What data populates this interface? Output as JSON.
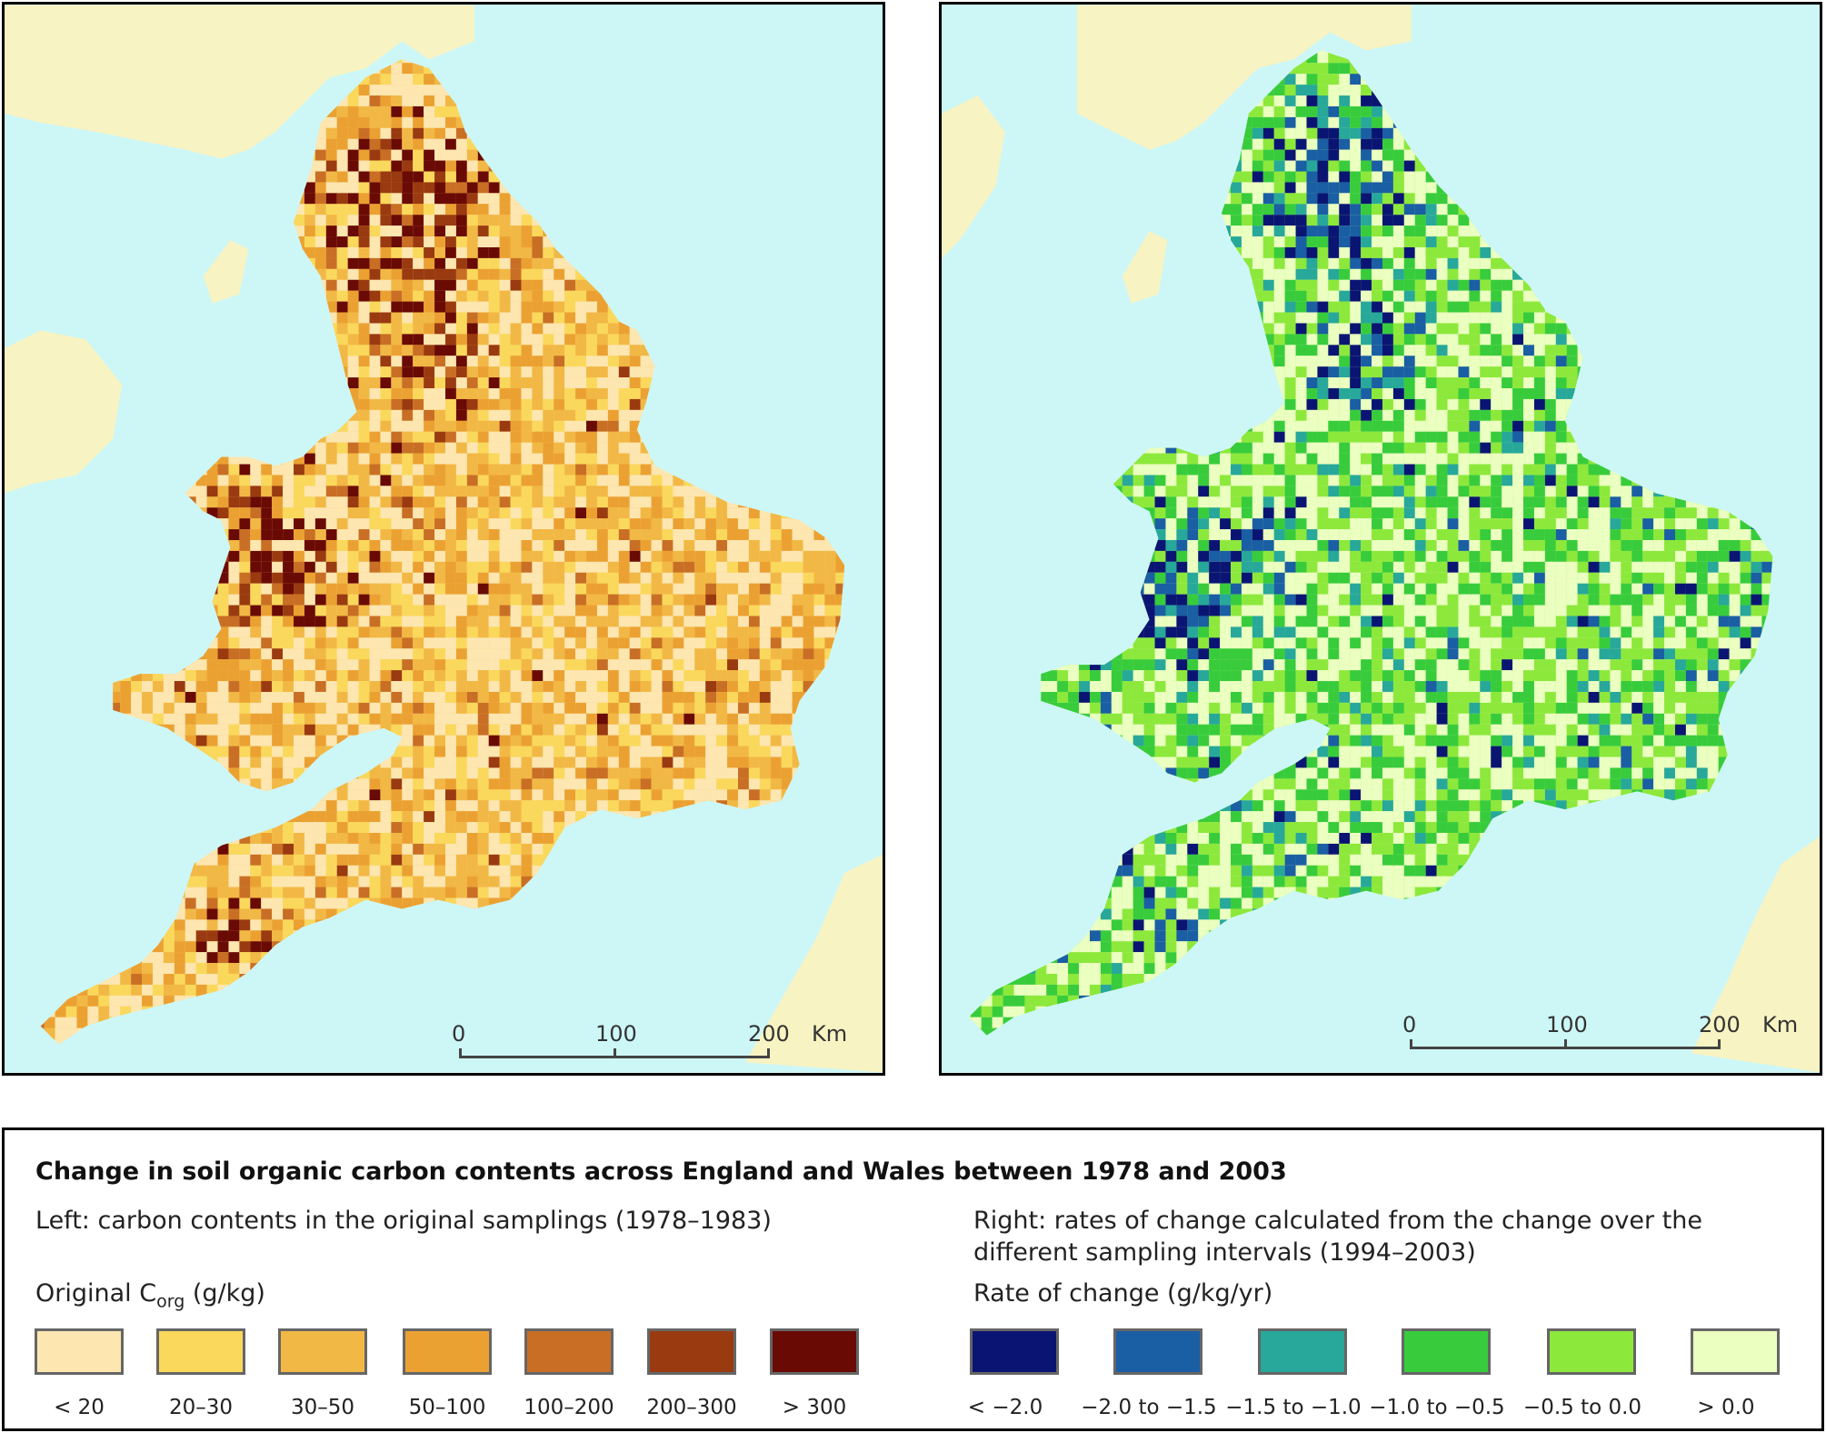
{
  "map_left": {
    "scalebar": {
      "ticks": [
        "0",
        "100",
        "200"
      ],
      "unit": "Km"
    }
  },
  "map_right": {
    "scalebar": {
      "ticks": [
        "0",
        "100",
        "200"
      ],
      "unit": "Km"
    }
  },
  "legend": {
    "title": "Change in soil organic carbon contents across England and Wales between 1978 and 2003",
    "left_description": "Left: carbon contents in the original samplings (1978–1983)",
    "right_description": "Right: rates of change calculated from the change over the different sampling intervals (1994–2003)",
    "left_heading": {
      "prefix": "Original C",
      "subscript": "org",
      "suffix": " (g/kg)"
    },
    "right_heading": "Rate of change (g/kg/yr)",
    "left_classes": [
      {
        "label": "< 20",
        "color": "#fde6b0"
      },
      {
        "label": "20–30",
        "color": "#fad85c"
      },
      {
        "label": "30–50",
        "color": "#f2b845"
      },
      {
        "label": "50–100",
        "color": "#eba132"
      },
      {
        "label": "100–200",
        "color": "#c86f25"
      },
      {
        "label": "200–300",
        "color": "#9a3a10"
      },
      {
        "label": "> 300",
        "color": "#6a0a05"
      }
    ],
    "right_classes": [
      {
        "label": "< −2.0",
        "color": "#0a1573"
      },
      {
        "label": "−2.0 to −1.5",
        "color": "#1a5ea4"
      },
      {
        "label": "−1.5 to −1.0",
        "color": "#27a89a"
      },
      {
        "label": "−1.0 to −0.5",
        "color": "#38cc3c"
      },
      {
        "label": "−0.5 to 0.0",
        "color": "#8de83c"
      },
      {
        "label": "> 0.0",
        "color": "#eaffc0"
      }
    ]
  },
  "colors": {
    "sea": "#cdf7f7",
    "land_context": "#f7f3c2"
  }
}
